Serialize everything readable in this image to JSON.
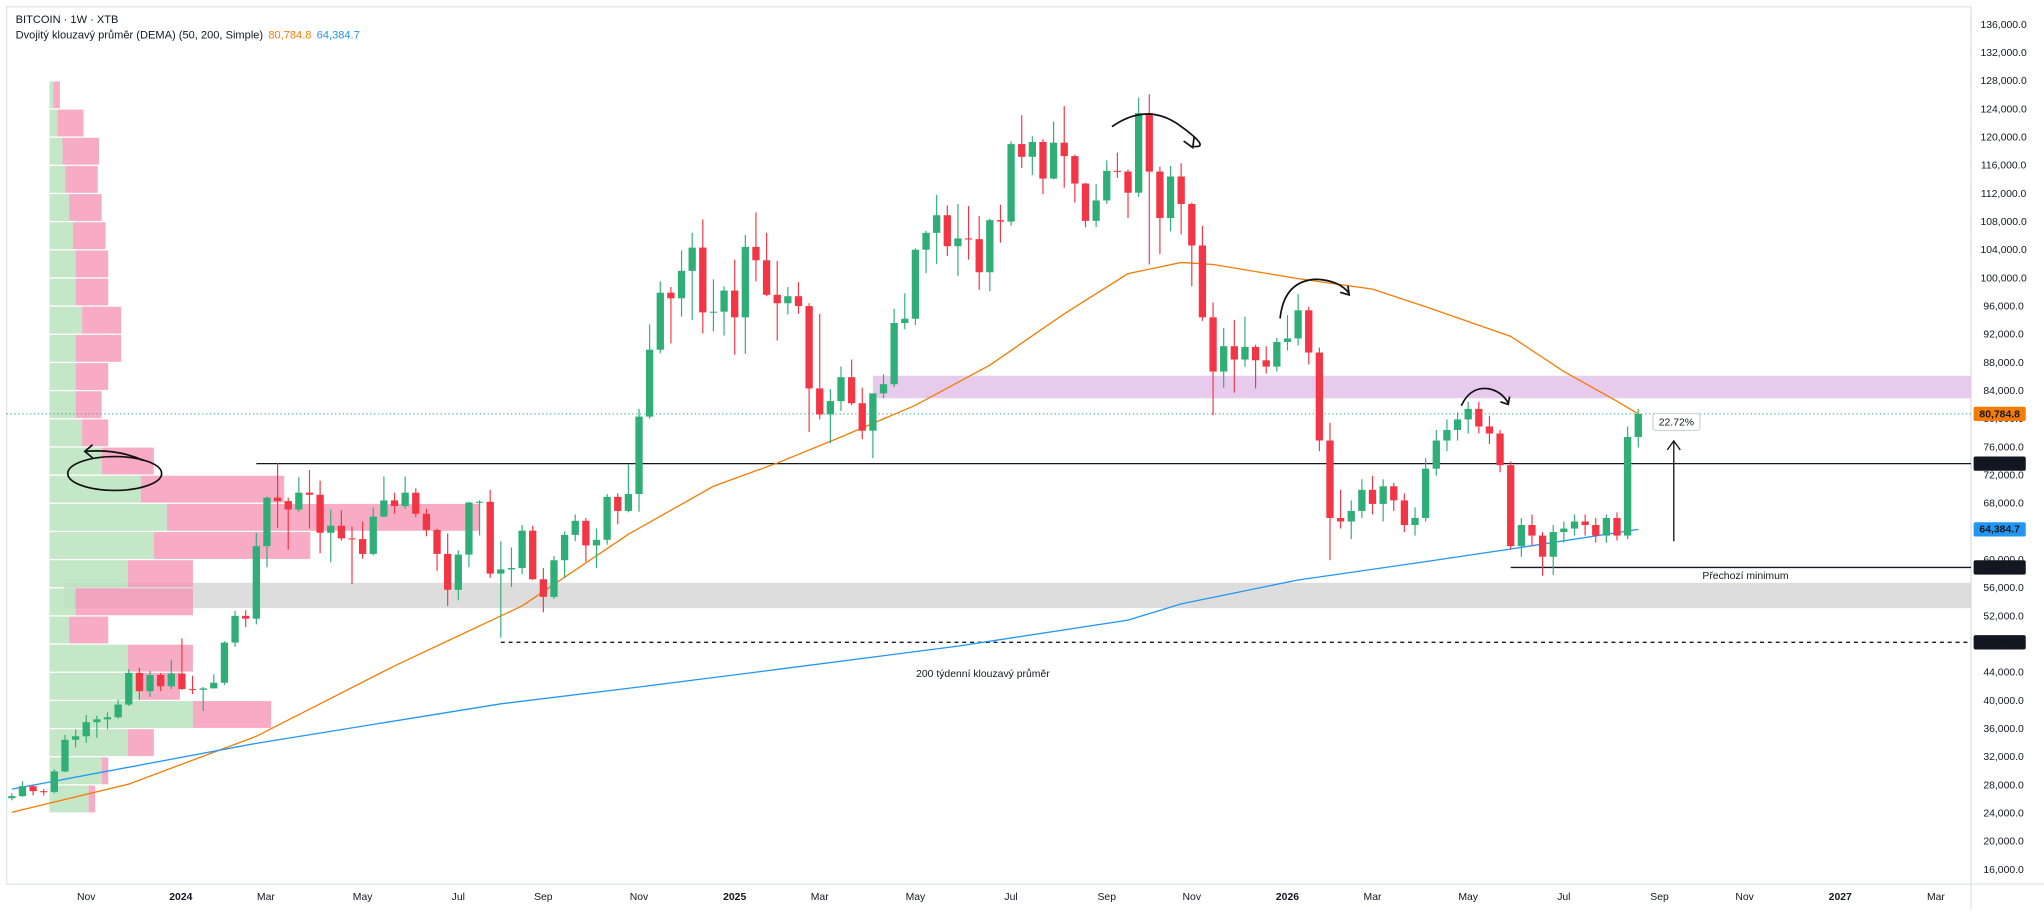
{
  "chart_data": {
    "type": "candlestick",
    "title": "BITCOIN · 1W · XTB",
    "subtitle": "Dvojitý klouzavý průměr (DEMA) (50, 200, Simple)",
    "up_color": "#2fae78",
    "down_color": "#f23645",
    "xlim": [
      -0.5,
      184.3
    ],
    "xticks": [
      {
        "value": 7,
        "label": "Nov"
      },
      {
        "value": 15.9,
        "label": "2024"
      },
      {
        "value": 23.9,
        "label": "Mar"
      },
      {
        "value": 33,
        "label": "May"
      },
      {
        "value": 42,
        "label": "Jul"
      },
      {
        "value": 50,
        "label": "Sep"
      },
      {
        "value": 59,
        "label": "Nov"
      },
      {
        "value": 68,
        "label": "2025"
      },
      {
        "value": 76,
        "label": "Mar"
      },
      {
        "value": 85,
        "label": "May"
      },
      {
        "value": 94,
        "label": "Jul"
      },
      {
        "value": 103,
        "label": "Sep"
      },
      {
        "value": 111,
        "label": "Nov"
      },
      {
        "value": 120,
        "label": "2026"
      },
      {
        "value": 128,
        "label": "Mar"
      },
      {
        "value": 137,
        "label": "May"
      },
      {
        "value": 146,
        "label": "Jul"
      },
      {
        "value": 155,
        "label": "Sep"
      },
      {
        "value": 163,
        "label": "Nov"
      },
      {
        "value": 172,
        "label": "2027"
      },
      {
        "value": 181,
        "label": "Mar"
      }
    ],
    "ylim": [
      14000,
      138600
    ],
    "yticks": [
      {
        "value": 16000,
        "label": "16,000.0"
      },
      {
        "value": 20000,
        "label": "20,000.0"
      },
      {
        "value": 24000,
        "label": "24,000.0"
      },
      {
        "value": 28000,
        "label": "28,000.0"
      },
      {
        "value": 32000,
        "label": "32,000.0"
      },
      {
        "value": 36000,
        "label": "36,000.0"
      },
      {
        "value": 40000,
        "label": "40,000.0"
      },
      {
        "value": 44000,
        "label": "44,000.0"
      },
      {
        "value": 48000,
        "label": "48,000.0"
      },
      {
        "value": 52000,
        "label": "52,000.0"
      },
      {
        "value": 56000,
        "label": "56,000.0"
      },
      {
        "value": 60000,
        "label": "60,000.0"
      },
      {
        "value": 64000,
        "label": "64,000.0"
      },
      {
        "value": 68000,
        "label": "68,000.0"
      },
      {
        "value": 72000,
        "label": "72,000.0"
      },
      {
        "value": 76000,
        "label": "76,000.0"
      },
      {
        "value": 80000,
        "label": "80,000.0"
      },
      {
        "value": 84000,
        "label": "84,000.0"
      },
      {
        "value": 88000,
        "label": "88,000.0"
      },
      {
        "value": 92000,
        "label": "92,000.0"
      },
      {
        "value": 96000,
        "label": "96,000.0"
      },
      {
        "value": 100000,
        "label": "100,000.0"
      },
      {
        "value": 104000,
        "label": "104,000.0"
      },
      {
        "value": 108000,
        "label": "108,000.0"
      },
      {
        "value": 112000,
        "label": "112,000.0"
      },
      {
        "value": 116000,
        "label": "116,000.0"
      },
      {
        "value": 120000,
        "label": "120,000.0"
      },
      {
        "value": 124000,
        "label": "124,000.0"
      },
      {
        "value": 128000,
        "label": "128,000.0"
      },
      {
        "value": 132000,
        "label": "132,000.0"
      },
      {
        "value": 136000,
        "label": "136,000.0"
      }
    ],
    "grid": false,
    "candles": [
      [
        26200,
        26900,
        25900,
        26500
      ],
      [
        26500,
        28600,
        26400,
        27900
      ],
      [
        27900,
        28100,
        26600,
        27200
      ],
      [
        27200,
        27500,
        26600,
        27100
      ],
      [
        27100,
        30300,
        26900,
        30000
      ],
      [
        30000,
        35200,
        29900,
        34500
      ],
      [
        34500,
        35900,
        33400,
        35000
      ],
      [
        35000,
        38000,
        34100,
        37000
      ],
      [
        37000,
        37900,
        34800,
        37400
      ],
      [
        37400,
        38400,
        36000,
        37700
      ],
      [
        37700,
        40200,
        37500,
        39500
      ],
      [
        39500,
        44500,
        39300,
        44000
      ],
      [
        44000,
        44700,
        40200,
        41400
      ],
      [
        41400,
        44300,
        40600,
        43700
      ],
      [
        43700,
        44000,
        41400,
        42100
      ],
      [
        42100,
        45900,
        41700,
        43900
      ],
      [
        43900,
        48900,
        41600,
        41700
      ],
      [
        41700,
        43600,
        41000,
        41600
      ],
      [
        41600,
        42000,
        38600,
        41800
      ],
      [
        41800,
        43800,
        41800,
        42600
      ],
      [
        42600,
        48500,
        42300,
        48300
      ],
      [
        48300,
        52800,
        47700,
        52100
      ],
      [
        52100,
        52900,
        50500,
        51700
      ],
      [
        51700,
        63900,
        50900,
        62000
      ],
      [
        62000,
        69000,
        59000,
        68900
      ],
      [
        68900,
        73800,
        64600,
        68400
      ],
      [
        68400,
        68900,
        61500,
        67200
      ],
      [
        67200,
        71800,
        66900,
        69600
      ],
      [
        69600,
        72800,
        64500,
        69300
      ],
      [
        69300,
        71300,
        61000,
        63900
      ],
      [
        63900,
        67200,
        59700,
        64900
      ],
      [
        64900,
        67100,
        62800,
        63100
      ],
      [
        63100,
        64800,
        56600,
        63000
      ],
      [
        63000,
        65500,
        60200,
        60900
      ],
      [
        60900,
        67500,
        60700,
        66200
      ],
      [
        66200,
        71900,
        66100,
        68500
      ],
      [
        68500,
        69600,
        66600,
        67700
      ],
      [
        67700,
        71900,
        67300,
        69600
      ],
      [
        69600,
        70200,
        66100,
        66600
      ],
      [
        66600,
        67300,
        63400,
        64300
      ],
      [
        64300,
        64500,
        58500,
        60900
      ],
      [
        60900,
        63800,
        53500,
        55800
      ],
      [
        55800,
        61400,
        54300,
        60800
      ],
      [
        60800,
        68300,
        59000,
        68200
      ],
      [
        68200,
        68500,
        63500,
        68300
      ],
      [
        68300,
        70000,
        57500,
        58100
      ],
      [
        58100,
        62700,
        49000,
        58700
      ],
      [
        58700,
        61800,
        56200,
        58900
      ],
      [
        58900,
        65000,
        58000,
        64200
      ],
      [
        64200,
        64900,
        57200,
        57300
      ],
      [
        57300,
        58900,
        52600,
        54800
      ],
      [
        54800,
        60600,
        54500,
        60000
      ],
      [
        60000,
        64100,
        57500,
        63600
      ],
      [
        63600,
        66500,
        62700,
        65600
      ],
      [
        65600,
        66000,
        59800,
        62100
      ],
      [
        62100,
        64500,
        58900,
        62900
      ],
      [
        62900,
        69400,
        62200,
        69000
      ],
      [
        69000,
        69500,
        65100,
        67000
      ],
      [
        67000,
        73600,
        66800,
        69400
      ],
      [
        69400,
        81500,
        66900,
        80400
      ],
      [
        80400,
        93500,
        80100,
        89900
      ],
      [
        89900,
        99600,
        89400,
        98000
      ],
      [
        98000,
        98800,
        90800,
        97200
      ],
      [
        97200,
        104000,
        94600,
        101100
      ],
      [
        101100,
        106500,
        94100,
        104400
      ],
      [
        104400,
        108400,
        92200,
        95200
      ],
      [
        95200,
        99900,
        92500,
        95300
      ],
      [
        95300,
        98900,
        91900,
        98300
      ],
      [
        98300,
        102700,
        89200,
        94500
      ],
      [
        94500,
        106200,
        89300,
        104500
      ],
      [
        104500,
        109400,
        99600,
        102600
      ],
      [
        102600,
        106500,
        97500,
        97700
      ],
      [
        97700,
        102500,
        91200,
        96500
      ],
      [
        96500,
        98800,
        94900,
        97500
      ],
      [
        97500,
        99500,
        95000,
        96100
      ],
      [
        96100,
        96500,
        78200,
        84400
      ],
      [
        84400,
        95000,
        80000,
        80700
      ],
      [
        80700,
        84300,
        76600,
        82600
      ],
      [
        82600,
        87500,
        81200,
        86000
      ],
      [
        86000,
        88500,
        82000,
        82300
      ],
      [
        82300,
        84500,
        77200,
        78400
      ],
      [
        78400,
        83500,
        74500,
        83700
      ],
      [
        83700,
        86400,
        83000,
        85000
      ],
      [
        85000,
        95700,
        84600,
        93700
      ],
      [
        93700,
        97900,
        92800,
        94300
      ],
      [
        94300,
        104300,
        93400,
        104100
      ],
      [
        104100,
        106800,
        100800,
        106500
      ],
      [
        106500,
        111900,
        102100,
        109000
      ],
      [
        109000,
        110400,
        103200,
        104600
      ],
      [
        104600,
        110600,
        100400,
        105700
      ],
      [
        105700,
        110300,
        102700,
        105600
      ],
      [
        105600,
        108900,
        98400,
        100900
      ],
      [
        100900,
        108500,
        98200,
        108300
      ],
      [
        108300,
        110500,
        105100,
        108100
      ],
      [
        108100,
        119500,
        107500,
        119100
      ],
      [
        119100,
        123200,
        115700,
        117300
      ],
      [
        117300,
        120200,
        114700,
        119400
      ],
      [
        119400,
        119800,
        112000,
        114200
      ],
      [
        114200,
        122300,
        114100,
        119300
      ],
      [
        119300,
        124500,
        112900,
        117400
      ],
      [
        117400,
        117600,
        110800,
        113500
      ],
      [
        113500,
        113600,
        107300,
        108200
      ],
      [
        108200,
        113400,
        107300,
        111100
      ],
      [
        111100,
        116800,
        110600,
        115300
      ],
      [
        115300,
        117900,
        114300,
        115200
      ],
      [
        115200,
        115500,
        108600,
        112200
      ],
      [
        112200,
        125700,
        111600,
        123500
      ],
      [
        123500,
        126200,
        102000,
        115200
      ],
      [
        115200,
        115900,
        103500,
        108600
      ],
      [
        108600,
        116000,
        106700,
        114500
      ],
      [
        114500,
        116400,
        106300,
        110600
      ],
      [
        110600,
        110800,
        98900,
        104700
      ],
      [
        104700,
        107500,
        94000,
        94500
      ],
      [
        94500,
        96600,
        80600,
        86800
      ],
      [
        86800,
        93000,
        84500,
        90400
      ],
      [
        90400,
        94100,
        83800,
        88500
      ],
      [
        88500,
        94600,
        87500,
        90300
      ],
      [
        90300,
        90600,
        84400,
        88400
      ],
      [
        88400,
        90400,
        86500,
        87500
      ],
      [
        87500,
        91600,
        86800,
        91000
      ],
      [
        91000,
        94800,
        89800,
        91500
      ],
      [
        91500,
        97800,
        90500,
        95500
      ],
      [
        95500,
        96000,
        87800,
        89500
      ],
      [
        89500,
        90200,
        75500,
        77000
      ],
      [
        77000,
        79500,
        60000,
        66000
      ],
      [
        66000,
        70000,
        64500,
        65500
      ],
      [
        65500,
        68500,
        63000,
        67000
      ],
      [
        67000,
        71500,
        66000,
        70000
      ],
      [
        70000,
        72000,
        66500,
        68000
      ],
      [
        68000,
        71500,
        65500,
        70500
      ],
      [
        70500,
        71000,
        67000,
        68500
      ],
      [
        68500,
        69500,
        64000,
        65000
      ],
      [
        65000,
        67500,
        63500,
        66000
      ],
      [
        66000,
        74500,
        65500,
        73000
      ],
      [
        73000,
        78500,
        72000,
        77000
      ],
      [
        77000,
        80000,
        75500,
        78500
      ],
      [
        78500,
        81000,
        77000,
        80000
      ],
      [
        80000,
        82500,
        78000,
        81500
      ],
      [
        81500,
        82500,
        78000,
        79000
      ],
      [
        79000,
        80500,
        76500,
        78000
      ],
      [
        78000,
        78500,
        72500,
        73500
      ],
      [
        73500,
        74000,
        61500,
        62000
      ],
      [
        62000,
        66000,
        60500,
        65000
      ],
      [
        65000,
        66500,
        62000,
        63500
      ],
      [
        63500,
        64000,
        57800,
        60500
      ],
      [
        60500,
        65000,
        57900,
        64000
      ],
      [
        64000,
        65500,
        62500,
        64500
      ],
      [
        64500,
        66500,
        63500,
        65500
      ],
      [
        65500,
        66500,
        63500,
        65000
      ],
      [
        65000,
        66000,
        62500,
        63500
      ],
      [
        63500,
        66500,
        62500,
        66000
      ],
      [
        66000,
        66800,
        62800,
        63500
      ],
      [
        63500,
        79000,
        63000,
        77500
      ],
      [
        77500,
        81500,
        76000,
        80784.8
      ]
    ],
    "series": [
      {
        "color": "#f57c00",
        "x": [
          0,
          11,
          23,
          36,
          48,
          58,
          66,
          72,
          78,
          85,
          92,
          99,
          105,
          110,
          113,
          121,
          128,
          133,
          141,
          146,
          151,
          153
        ],
        "values": [
          24200,
          28200,
          35000,
          45000,
          53500,
          63700,
          70500,
          73800,
          77500,
          82000,
          87700,
          95000,
          100700,
          102300,
          102000,
          100000,
          98500,
          96000,
          91800,
          86800,
          82600,
          80784.8
        ]
      },
      {
        "color": "#2196f3",
        "x": [
          0,
          23,
          46,
          59,
          72,
          89,
          105,
          110,
          121,
          133,
          141,
          153
        ],
        "values": [
          27500,
          34000,
          39600,
          42000,
          44500,
          47800,
          51500,
          53800,
          57200,
          59800,
          61600,
          64384.7
        ]
      }
    ],
    "zones": [
      {
        "range": [
          83000,
          86200
        ],
        "color": "#e1bee7"
      },
      {
        "range": [
          53200,
          56800
        ],
        "color": "#d5d5d5"
      }
    ],
    "price_labels": [
      {
        "value": 80784.8,
        "label": "80,784.8",
        "color": "#f57c00"
      },
      {
        "value": 73721.0,
        "label": "73,721.0",
        "color": "#131722"
      },
      {
        "value": 64384.7,
        "label": "64,384.7",
        "color": "#2196f3"
      },
      {
        "value": 58979.4,
        "label": "58,979.4",
        "color": "#131722"
      },
      {
        "value": 48344.0,
        "label": "48,344.0",
        "color": "#131722"
      }
    ],
    "volume_profile": {
      "bins": [
        24000,
        28000,
        32000,
        36000,
        40000,
        44000,
        48000,
        52000,
        56000,
        60000,
        64000,
        68000,
        72000,
        76000,
        80000,
        84000,
        88000,
        92000,
        96000,
        100000,
        104000,
        108000,
        112000,
        116000,
        120000,
        124000,
        128000
      ],
      "up": [
        30,
        40,
        60,
        110,
        70,
        60,
        15,
        20,
        60,
        80,
        90,
        70,
        40,
        25,
        20,
        20,
        20,
        25,
        20,
        20,
        18,
        15,
        12,
        10,
        6,
        3
      ],
      "down": [
        5,
        5,
        20,
        60,
        30,
        50,
        30,
        90,
        50,
        120,
        240,
        110,
        40,
        20,
        20,
        25,
        35,
        30,
        25,
        25,
        25,
        25,
        25,
        28,
        20,
        5
      ],
      "up_color": "#b9e3bd",
      "down_color": "#f48fb1"
    },
    "annotations": [
      "22.72%",
      "Přechozí minimum",
      "200 týdenní klouzavý průměr"
    ]
  }
}
